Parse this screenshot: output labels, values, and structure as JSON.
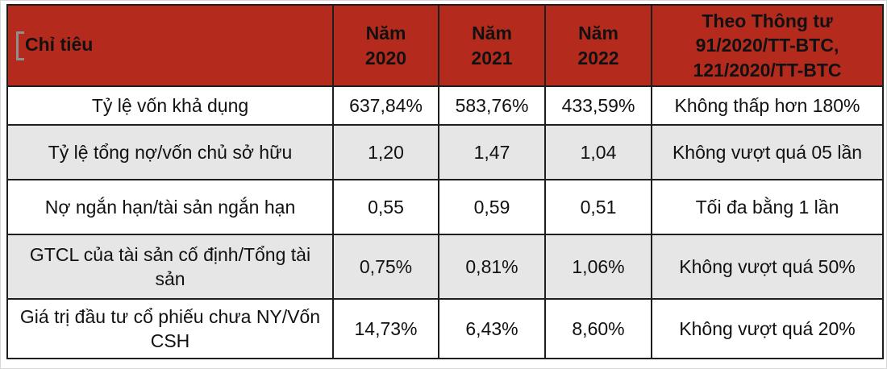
{
  "colors": {
    "header_bg": "#b42b1e",
    "header_text": "#ffffff",
    "alt_row_bg": "#e6e6e6",
    "border": "#1e1e1e",
    "body_text": "#111111"
  },
  "table": {
    "columns": [
      {
        "label": "Chỉ tiêu"
      },
      {
        "label": "Năm\n2020"
      },
      {
        "label": "Năm\n2021"
      },
      {
        "label": "Năm\n2022"
      },
      {
        "label": "Theo Thông tư\n91/2020/TT-BTC,\n121/2020/TT-BTC"
      }
    ],
    "rows": [
      {
        "cells": [
          "Tỷ lệ vốn khả dụng",
          "637,84%",
          "583,76%",
          "433,59%",
          "Không thấp hơn 180%"
        ]
      },
      {
        "cells": [
          "Tỷ lệ tổng nợ/vốn chủ sở hữu",
          "1,20",
          "1,47",
          "1,04",
          "Không vượt quá 05 lần"
        ]
      },
      {
        "cells": [
          "Nợ ngắn hạn/tài sản ngắn hạn",
          "0,55",
          "0,59",
          "0,51",
          "Tối đa bằng 1 lần"
        ]
      },
      {
        "cells": [
          "GTCL của tài sản cố định/Tổng tài sản",
          "0,75%",
          "0,81%",
          "1,06%",
          "Không vượt quá 50%"
        ]
      },
      {
        "cells": [
          "Giá trị đầu tư cổ phiếu chưa NY/Vốn CSH",
          "14,73%",
          "6,43%",
          "8,60%",
          "Không vượt quá 20%"
        ]
      }
    ]
  }
}
